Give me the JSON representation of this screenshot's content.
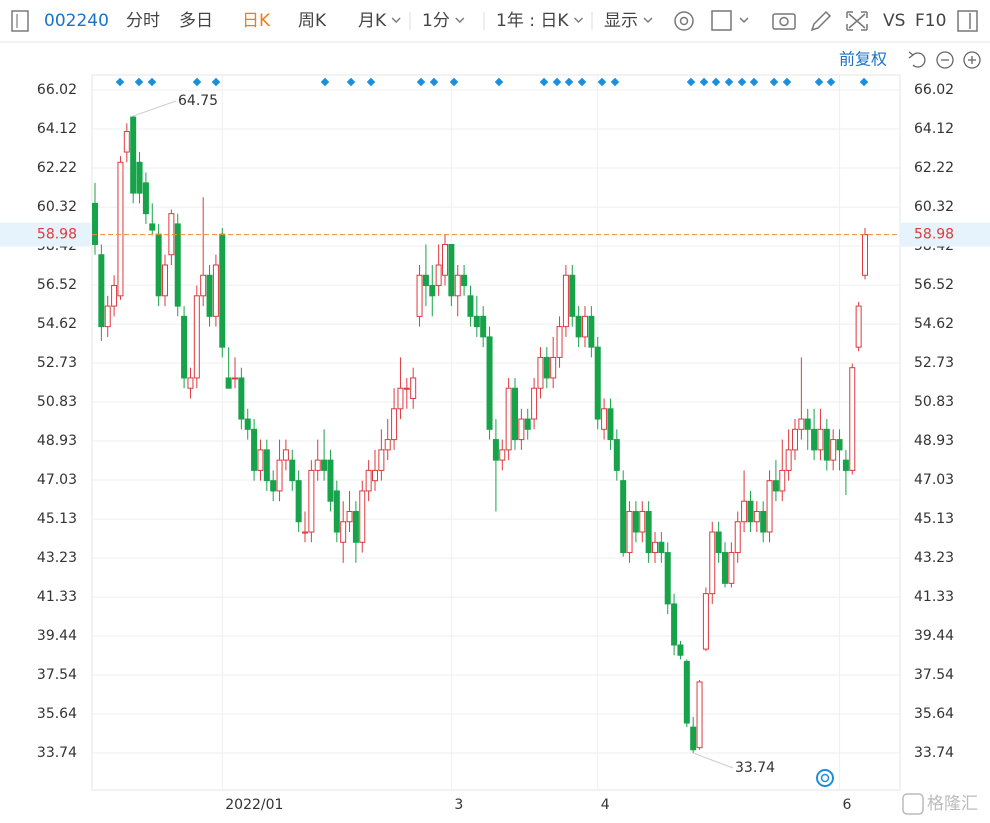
{
  "toolbar": {
    "code": "002240",
    "tabs": [
      "分时",
      "多日",
      "日K",
      "周K",
      "月K",
      "1分",
      "1年 : 日K",
      "显示"
    ],
    "active_tab": "日K",
    "right": [
      "VS",
      "F10"
    ]
  },
  "adjust": "前复权",
  "watermark": "格隆汇",
  "chart_data": {
    "type": "candlestick",
    "up_color": "#e0393e",
    "down_color": "#17a34a",
    "ylim": [
      31.94,
      66.75
    ],
    "yticks": [
      66.02,
      64.12,
      62.22,
      60.32,
      58.42,
      56.52,
      54.62,
      52.73,
      50.83,
      48.93,
      47.03,
      45.13,
      43.23,
      41.33,
      39.44,
      37.54,
      35.64,
      33.74
    ],
    "x_labels": [
      {
        "index": 20,
        "label": "2022/01"
      },
      {
        "index": 56,
        "label": "3"
      },
      {
        "index": 79,
        "label": "4"
      },
      {
        "index": 117,
        "label": "6"
      }
    ],
    "last_price": 58.98,
    "max_label": {
      "index": 6,
      "value": 64.75
    },
    "min_label": {
      "index": 94,
      "value": 33.74
    },
    "candles": [
      [
        60.5,
        61.5,
        58,
        58.5
      ],
      [
        58,
        58.5,
        53.8,
        54.5
      ],
      [
        54.5,
        56,
        54,
        55.5
      ],
      [
        55.5,
        57,
        55,
        56.5
      ],
      [
        56,
        62.8,
        55.8,
        62.5
      ],
      [
        63,
        64.4,
        62.5,
        64
      ],
      [
        64.7,
        64.75,
        60.5,
        61
      ],
      [
        62.5,
        63,
        60.5,
        61
      ],
      [
        61.5,
        62,
        59.5,
        60
      ],
      [
        59.5,
        60.5,
        59,
        59.2
      ],
      [
        59,
        59.5,
        55.5,
        56
      ],
      [
        56,
        58,
        55.5,
        57.5
      ],
      [
        58,
        60.2,
        57.5,
        60
      ],
      [
        59.5,
        60,
        55,
        55.5
      ],
      [
        55,
        55.5,
        51.5,
        52
      ],
      [
        51.5,
        52.5,
        51,
        52
      ],
      [
        52,
        56.5,
        51.5,
        56
      ],
      [
        56,
        60.8,
        55.5,
        57
      ],
      [
        57,
        57.5,
        54.5,
        55
      ],
      [
        55,
        58,
        54.5,
        57.5
      ],
      [
        59,
        59.3,
        53,
        53.5
      ],
      [
        52,
        53.5,
        51.5,
        51.5
      ],
      [
        52,
        53,
        51.5,
        52
      ],
      [
        52,
        52.5,
        49.5,
        50
      ],
      [
        50,
        50.5,
        49,
        49.5
      ],
      [
        49.5,
        50,
        47,
        47.5
      ],
      [
        47.5,
        49,
        47,
        48.5
      ],
      [
        48.5,
        49,
        46.5,
        47
      ],
      [
        47,
        47.5,
        46,
        46.5
      ],
      [
        46.5,
        49,
        46,
        48
      ],
      [
        48,
        49,
        47.5,
        48.5
      ],
      [
        48,
        48.5,
        46.5,
        47
      ],
      [
        47,
        47.5,
        44.5,
        45
      ],
      [
        44.5,
        45.5,
        44,
        44.5
      ],
      [
        44.5,
        48,
        44,
        47.5
      ],
      [
        47.5,
        49,
        47,
        48
      ],
      [
        48,
        49.5,
        47,
        47.5
      ],
      [
        48,
        48.5,
        45.5,
        46
      ],
      [
        46.5,
        47,
        44,
        44.5
      ],
      [
        44,
        46,
        43,
        45
      ],
      [
        45,
        46.5,
        44.5,
        45.5
      ],
      [
        45.5,
        46,
        43,
        44
      ],
      [
        44,
        47,
        43.5,
        46.5
      ],
      [
        46.5,
        48,
        46,
        47.5
      ],
      [
        47,
        48.5,
        46.5,
        47.5
      ],
      [
        47.5,
        49.5,
        47,
        48.5
      ],
      [
        48.5,
        50,
        48,
        49
      ],
      [
        49,
        51.5,
        48.5,
        50.5
      ],
      [
        50.5,
        53,
        50,
        51.5
      ],
      [
        51.5,
        52,
        50.5,
        51.5
      ],
      [
        51,
        52.5,
        50.5,
        52
      ],
      [
        55,
        57.5,
        54.5,
        57
      ],
      [
        57,
        58.5,
        55.5,
        56.5
      ],
      [
        56.5,
        57.5,
        55,
        56
      ],
      [
        56.5,
        58.5,
        56,
        57.5
      ],
      [
        57,
        59,
        56.5,
        58.5
      ],
      [
        58.5,
        58.5,
        55.5,
        56
      ],
      [
        56,
        57.5,
        55,
        57
      ],
      [
        57,
        57.5,
        56,
        56.5
      ],
      [
        56,
        56.5,
        54.5,
        55
      ],
      [
        55,
        56,
        54,
        54.5
      ],
      [
        55,
        55.5,
        53.5,
        54
      ],
      [
        54,
        54.5,
        49,
        49.5
      ],
      [
        49,
        50,
        45.5,
        48
      ],
      [
        48,
        49,
        47.5,
        48.5
      ],
      [
        48.5,
        52,
        48,
        51.5
      ],
      [
        51.5,
        52,
        48.5,
        49
      ],
      [
        49,
        50.5,
        48.5,
        50
      ],
      [
        50,
        50.5,
        49,
        49.5
      ],
      [
        50,
        52,
        49.5,
        51.5
      ],
      [
        51.5,
        53.5,
        51,
        53
      ],
      [
        53,
        53.5,
        51.5,
        52
      ],
      [
        52,
        54,
        51.5,
        53
      ],
      [
        53,
        55,
        52.5,
        54.5
      ],
      [
        54.5,
        57.5,
        54,
        57
      ],
      [
        57,
        57.5,
        54.5,
        55
      ],
      [
        55,
        55.5,
        53.5,
        54
      ],
      [
        54,
        55.5,
        53.5,
        55
      ],
      [
        55,
        55.5,
        53,
        53.5
      ],
      [
        53.5,
        54,
        49.5,
        50
      ],
      [
        49.5,
        51,
        49,
        50.5
      ],
      [
        50.5,
        51,
        48.5,
        49
      ],
      [
        49,
        49.5,
        47,
        47.5
      ],
      [
        47,
        47.5,
        43.3,
        43.5
      ],
      [
        43.5,
        46,
        43,
        45.5
      ],
      [
        45.5,
        46,
        44,
        44.5
      ],
      [
        44.5,
        46,
        44,
        45.5
      ],
      [
        45.5,
        46,
        43,
        43.5
      ],
      [
        43.5,
        44.5,
        43,
        44
      ],
      [
        44,
        44.5,
        43,
        43.5
      ],
      [
        43.5,
        44,
        40.5,
        41
      ],
      [
        41,
        41.5,
        38.5,
        39
      ],
      [
        39,
        39.2,
        38.3,
        38.5
      ],
      [
        38.2,
        38.3,
        35,
        35.2
      ],
      [
        35,
        35.5,
        33.74,
        33.9
      ],
      [
        34,
        37.3,
        33.9,
        37.2
      ],
      [
        38.8,
        41.8,
        38.7,
        41.5
      ],
      [
        41.5,
        45,
        41,
        44.5
      ],
      [
        44.5,
        45,
        43,
        43.5
      ],
      [
        43.5,
        44,
        41.8,
        42
      ],
      [
        42,
        44,
        41.8,
        43.5
      ],
      [
        43.5,
        45.5,
        43,
        45
      ],
      [
        45,
        47.5,
        44.5,
        46
      ],
      [
        46,
        46.5,
        44.5,
        45
      ],
      [
        45,
        46,
        44.5,
        45.5
      ],
      [
        45.5,
        46,
        44,
        44.5
      ],
      [
        44.5,
        47.5,
        44,
        47
      ],
      [
        47,
        48,
        46,
        46.5
      ],
      [
        46.5,
        49,
        46,
        47.5
      ],
      [
        47.5,
        49.5,
        47,
        48.5
      ],
      [
        48.5,
        50,
        48,
        49.5
      ],
      [
        49.5,
        53,
        49,
        50
      ],
      [
        50,
        50.5,
        48.5,
        49.5
      ],
      [
        49.5,
        50.5,
        48,
        48.5
      ],
      [
        48.5,
        50.5,
        48,
        49.5
      ],
      [
        49.5,
        50,
        47.5,
        48
      ],
      [
        48,
        49.5,
        47.5,
        49
      ],
      [
        49,
        49.5,
        47.5,
        48.5
      ],
      [
        48,
        48.5,
        46.3,
        47.5
      ],
      [
        47.5,
        52.7,
        47.3,
        52.5
      ],
      [
        53.5,
        55.7,
        53.3,
        55.5
      ],
      [
        57,
        59.3,
        56.8,
        58.98
      ]
    ]
  }
}
